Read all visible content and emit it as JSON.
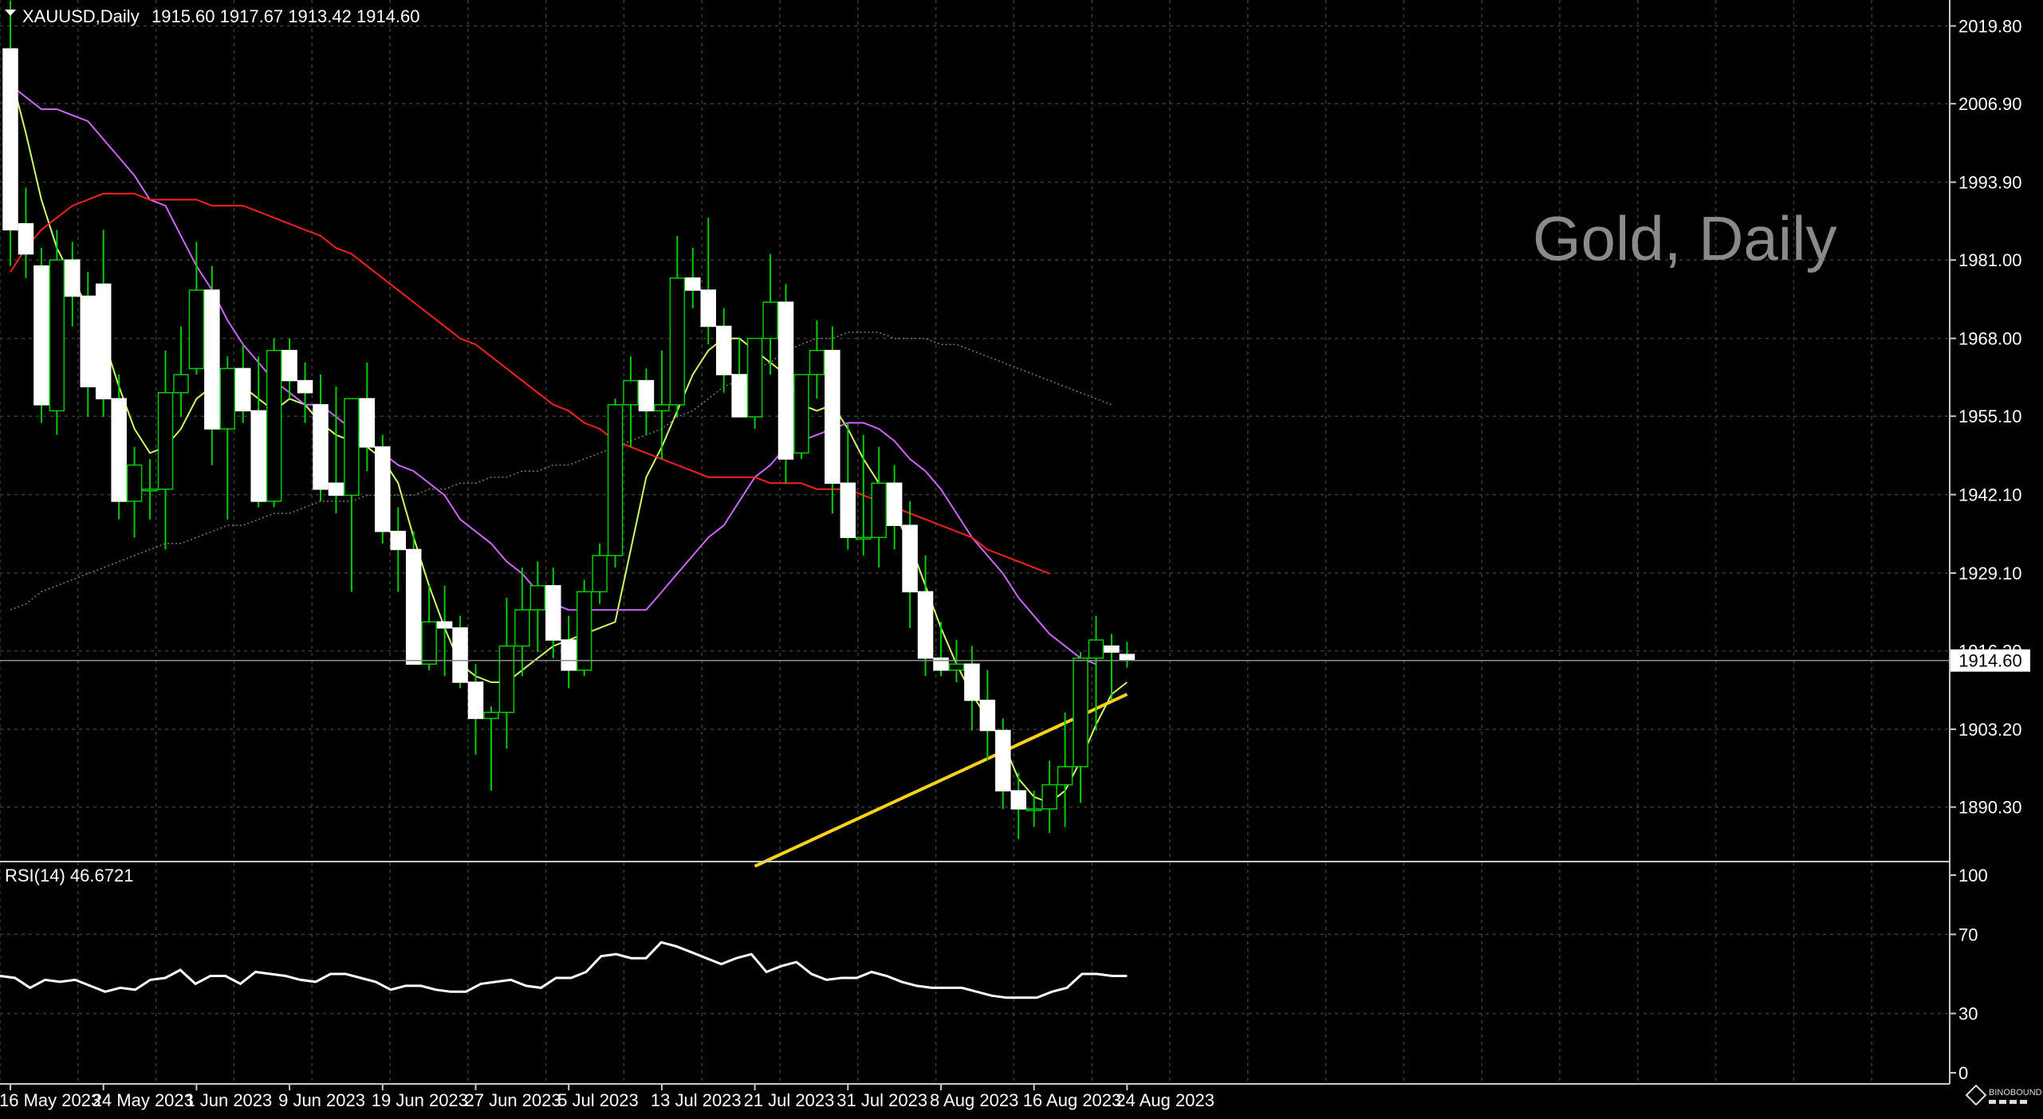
{
  "header": {
    "symbol": "XAUUSD,Daily",
    "ohlc": "1915.60 1917.67 1913.42 1914.60"
  },
  "watermark": "Gold, Daily",
  "logo": "BINOBOUND",
  "chart_data": {
    "type": "candlestick",
    "price_axis": {
      "min": 1881.4,
      "max": 2024.1,
      "ticks": [
        "2019.80",
        "2006.90",
        "1993.90",
        "1981.00",
        "1968.00",
        "1955.10",
        "1942.10",
        "1929.10",
        "1916.20",
        "1903.20",
        "1890.30"
      ]
    },
    "current_price": 1914.6,
    "current_price_label": "1914.60",
    "x_axis_labels": [
      {
        "index": 0,
        "text": "16 May 2023"
      },
      {
        "index": 6,
        "text": "24 May 2023"
      },
      {
        "index": 12,
        "text": "1 Jun 2023"
      },
      {
        "index": 18,
        "text": "9 Jun 2023"
      },
      {
        "index": 24,
        "text": "19 Jun 2023"
      },
      {
        "index": 30,
        "text": "27 Jun 2023"
      },
      {
        "index": 36,
        "text": "5 Jul 2023"
      },
      {
        "index": 42,
        "text": "13 Jul 2023"
      },
      {
        "index": 48,
        "text": "21 Jul 2023"
      },
      {
        "index": 54,
        "text": "31 Jul 2023"
      },
      {
        "index": 60,
        "text": "8 Aug 2023"
      },
      {
        "index": 66,
        "text": "16 Aug 2023"
      },
      {
        "index": 72,
        "text": "24 Aug 2023"
      }
    ],
    "candles": [
      [
        2016,
        2024,
        1980,
        1986
      ],
      [
        1987,
        1993,
        1978,
        1982
      ],
      [
        1980,
        1983,
        1954,
        1957
      ],
      [
        1956,
        1986,
        1952,
        1981
      ],
      [
        1981,
        1984,
        1970,
        1975
      ],
      [
        1975,
        1979,
        1955,
        1960
      ],
      [
        1977,
        1986,
        1955,
        1958
      ],
      [
        1958,
        1962,
        1938,
        1941
      ],
      [
        1941,
        1950,
        1935,
        1947
      ],
      [
        1943,
        1948,
        1938,
        1943
      ],
      [
        1943,
        1966,
        1933,
        1959
      ],
      [
        1959,
        1970,
        1955,
        1962
      ],
      [
        1963,
        1984,
        1962,
        1976
      ],
      [
        1976,
        1980,
        1947,
        1953
      ],
      [
        1953,
        1965,
        1938,
        1963
      ],
      [
        1963,
        1967,
        1954,
        1956
      ],
      [
        1956,
        1965,
        1940,
        1941
      ],
      [
        1941,
        1968,
        1940,
        1966
      ],
      [
        1966,
        1968,
        1958,
        1961
      ],
      [
        1961,
        1964,
        1954,
        1959
      ],
      [
        1957,
        1962,
        1941,
        1943
      ],
      [
        1944,
        1960,
        1939,
        1942
      ],
      [
        1942,
        1958,
        1926,
        1958
      ],
      [
        1958,
        1964,
        1946,
        1950
      ],
      [
        1950,
        1952,
        1934,
        1936
      ],
      [
        1936,
        1940,
        1926,
        1933
      ],
      [
        1933,
        1936,
        1914,
        1914
      ],
      [
        1914,
        1927,
        1913,
        1921
      ],
      [
        1921,
        1927,
        1912,
        1920
      ],
      [
        1920,
        1922,
        1910,
        1911
      ],
      [
        1911,
        1914,
        1899,
        1905
      ],
      [
        1905,
        1907,
        1893,
        1906
      ],
      [
        1906,
        1925,
        1900,
        1917
      ],
      [
        1917,
        1930,
        1912,
        1923
      ],
      [
        1923,
        1931,
        1916,
        1927
      ],
      [
        1927,
        1930,
        1915,
        1918
      ],
      [
        1918,
        1922,
        1910,
        1913
      ],
      [
        1913,
        1928,
        1912,
        1926
      ],
      [
        1926,
        1934,
        1924,
        1932
      ],
      [
        1932,
        1958,
        1930,
        1957
      ],
      [
        1957,
        1965,
        1950,
        1961
      ],
      [
        1961,
        1963,
        1952,
        1956
      ],
      [
        1956,
        1966,
        1948,
        1957
      ],
      [
        1957,
        1985,
        1955,
        1978
      ],
      [
        1978,
        1983,
        1973,
        1976
      ],
      [
        1976,
        1988,
        1967,
        1970
      ],
      [
        1970,
        1973,
        1959,
        1962
      ],
      [
        1962,
        1968,
        1956,
        1955
      ],
      [
        1955,
        1968,
        1953,
        1968
      ],
      [
        1968,
        1982,
        1962,
        1974
      ],
      [
        1974,
        1977,
        1944,
        1948
      ],
      [
        1949,
        1961,
        1948,
        1962
      ],
      [
        1962,
        1971,
        1958,
        1966
      ],
      [
        1966,
        1970,
        1939,
        1944
      ],
      [
        1944,
        1954,
        1933,
        1935
      ],
      [
        1935,
        1952,
        1932,
        1935
      ],
      [
        1935,
        1950,
        1930,
        1944
      ],
      [
        1944,
        1947,
        1933,
        1937
      ],
      [
        1937,
        1941,
        1920,
        1926
      ],
      [
        1926,
        1932,
        1912,
        1915
      ],
      [
        1915,
        1921,
        1912,
        1913
      ],
      [
        1913,
        1918,
        1911,
        1914
      ],
      [
        1914,
        1917,
        1903,
        1908
      ],
      [
        1908,
        1913,
        1898,
        1903
      ],
      [
        1903,
        1905,
        1890,
        1893
      ],
      [
        1893,
        1896,
        1885,
        1890
      ],
      [
        1890,
        1893,
        1887,
        1890
      ],
      [
        1890,
        1898,
        1886,
        1894
      ],
      [
        1894,
        1906,
        1887,
        1897
      ],
      [
        1897,
        1916,
        1891,
        1915
      ],
      [
        1915,
        1922,
        1903,
        1918
      ],
      [
        1917,
        1919,
        1908,
        1916
      ],
      [
        1915.6,
        1917.67,
        1913.42,
        1914.6
      ]
    ],
    "moving_averages": [
      {
        "color": "#ccff66",
        "width": 2,
        "values": [
          2012,
          2002,
          1991,
          1983,
          1978,
          1973,
          1968,
          1960,
          1953,
          1949,
          1950,
          1953,
          1958,
          1960,
          1962,
          1960,
          1958,
          1956,
          1958,
          1957,
          1954,
          1952,
          1951,
          1950,
          1948,
          1944,
          1935,
          1927,
          1920,
          1914,
          1912,
          1911,
          1911,
          1913,
          1915,
          1917,
          1918,
          1919,
          1920,
          1921,
          1933,
          1945,
          1950,
          1956,
          1962,
          1966,
          1968,
          1968,
          1966,
          1964,
          1962,
          1957,
          1956,
          1957,
          1953,
          1948,
          1944,
          1939,
          1934,
          1927,
          1920,
          1914,
          1909,
          1905,
          1901,
          1895,
          1892,
          1891,
          1893,
          1898,
          1904,
          1909,
          1911
        ]
      },
      {
        "color": "#cc66ff",
        "width": 2,
        "values": [
          2010,
          2008,
          2006,
          2006,
          2005,
          2004,
          2001,
          1998,
          1995,
          1991,
          1990,
          1985,
          1980,
          1976,
          1971,
          1967,
          1964,
          1961,
          1959,
          1957,
          1957,
          1955,
          1953,
          1951,
          1949,
          1947,
          1946,
          1944,
          1942,
          1938,
          1936,
          1934,
          1931,
          1929,
          1926,
          1924,
          1923,
          1923,
          1923,
          1923,
          1923,
          1923,
          1926,
          1929,
          1932,
          1935,
          1937,
          1941,
          1945,
          1947,
          1950,
          1951,
          1952,
          1953,
          1954,
          1954,
          1953,
          1951,
          1948,
          1946,
          1943,
          1939,
          1935,
          1932,
          1929,
          1925,
          1922,
          1919,
          1917,
          1915,
          1914
        ]
      },
      {
        "color": "#ff2020",
        "width": 2,
        "values": [
          1979,
          1983,
          1986,
          1988,
          1990,
          1991,
          1992,
          1992,
          1992,
          1991,
          1991,
          1991,
          1991,
          1990,
          1990,
          1990,
          1989,
          1988,
          1987,
          1986,
          1985,
          1983,
          1982,
          1980,
          1978,
          1976,
          1974,
          1972,
          1970,
          1968,
          1967,
          1965,
          1963,
          1961,
          1959,
          1957,
          1956,
          1954,
          1953,
          1951,
          1950,
          1949,
          1948,
          1947,
          1946,
          1945,
          1945,
          1945,
          1945,
          1944,
          1944,
          1944,
          1943,
          1943,
          1943,
          1942,
          1941,
          1940,
          1939,
          1938,
          1937,
          1936,
          1935,
          1933,
          1932,
          1931,
          1930,
          1929
        ]
      },
      {
        "color": "#7a7a7a",
        "width": 1.5,
        "dash": "2 3",
        "values": [
          1923,
          1924,
          1926,
          1927,
          1928,
          1929,
          1930,
          1931,
          1932,
          1933,
          1934,
          1934,
          1935,
          1936,
          1937,
          1937,
          1938,
          1939,
          1939,
          1940,
          1941,
          1941,
          1941,
          1942,
          1942,
          1942,
          1942,
          1943,
          1943,
          1944,
          1944,
          1945,
          1945,
          1946,
          1946,
          1947,
          1947,
          1948,
          1949,
          1950,
          1951,
          1952,
          1953,
          1955,
          1956,
          1958,
          1960,
          1961,
          1963,
          1964,
          1966,
          1967,
          1968,
          1968,
          1969,
          1969,
          1969,
          1968,
          1968,
          1968,
          1967,
          1967,
          1966,
          1965,
          1964,
          1963,
          1962,
          1961,
          1960,
          1959,
          1958,
          1957
        ]
      }
    ],
    "ma_long": {
      "color": "#ffd21e",
      "width": 4,
      "start_index": 48,
      "start_value": 1880.5,
      "end_index": 72,
      "end_value": 1909
    },
    "rsi": {
      "label": "RSI(14) 46.6721",
      "min": 0,
      "max": 100,
      "ticks": [
        "100",
        "70",
        "30",
        "0"
      ],
      "values": [
        49,
        48,
        43,
        47,
        46,
        47,
        44,
        41,
        43,
        42,
        47,
        48,
        52,
        45,
        49,
        49,
        45,
        51,
        50,
        49,
        47,
        46,
        50,
        50,
        48,
        46,
        42,
        44,
        44,
        42,
        41,
        41,
        45,
        46,
        47,
        44,
        43,
        48,
        48,
        51,
        59,
        60,
        58,
        58,
        66,
        64,
        61,
        58,
        55,
        58,
        60,
        51,
        54,
        56,
        50,
        47,
        48,
        48,
        51,
        49,
        46,
        44,
        43,
        43,
        43,
        41,
        39,
        38,
        38,
        38,
        41,
        43,
        50,
        50,
        49,
        49
      ]
    }
  }
}
